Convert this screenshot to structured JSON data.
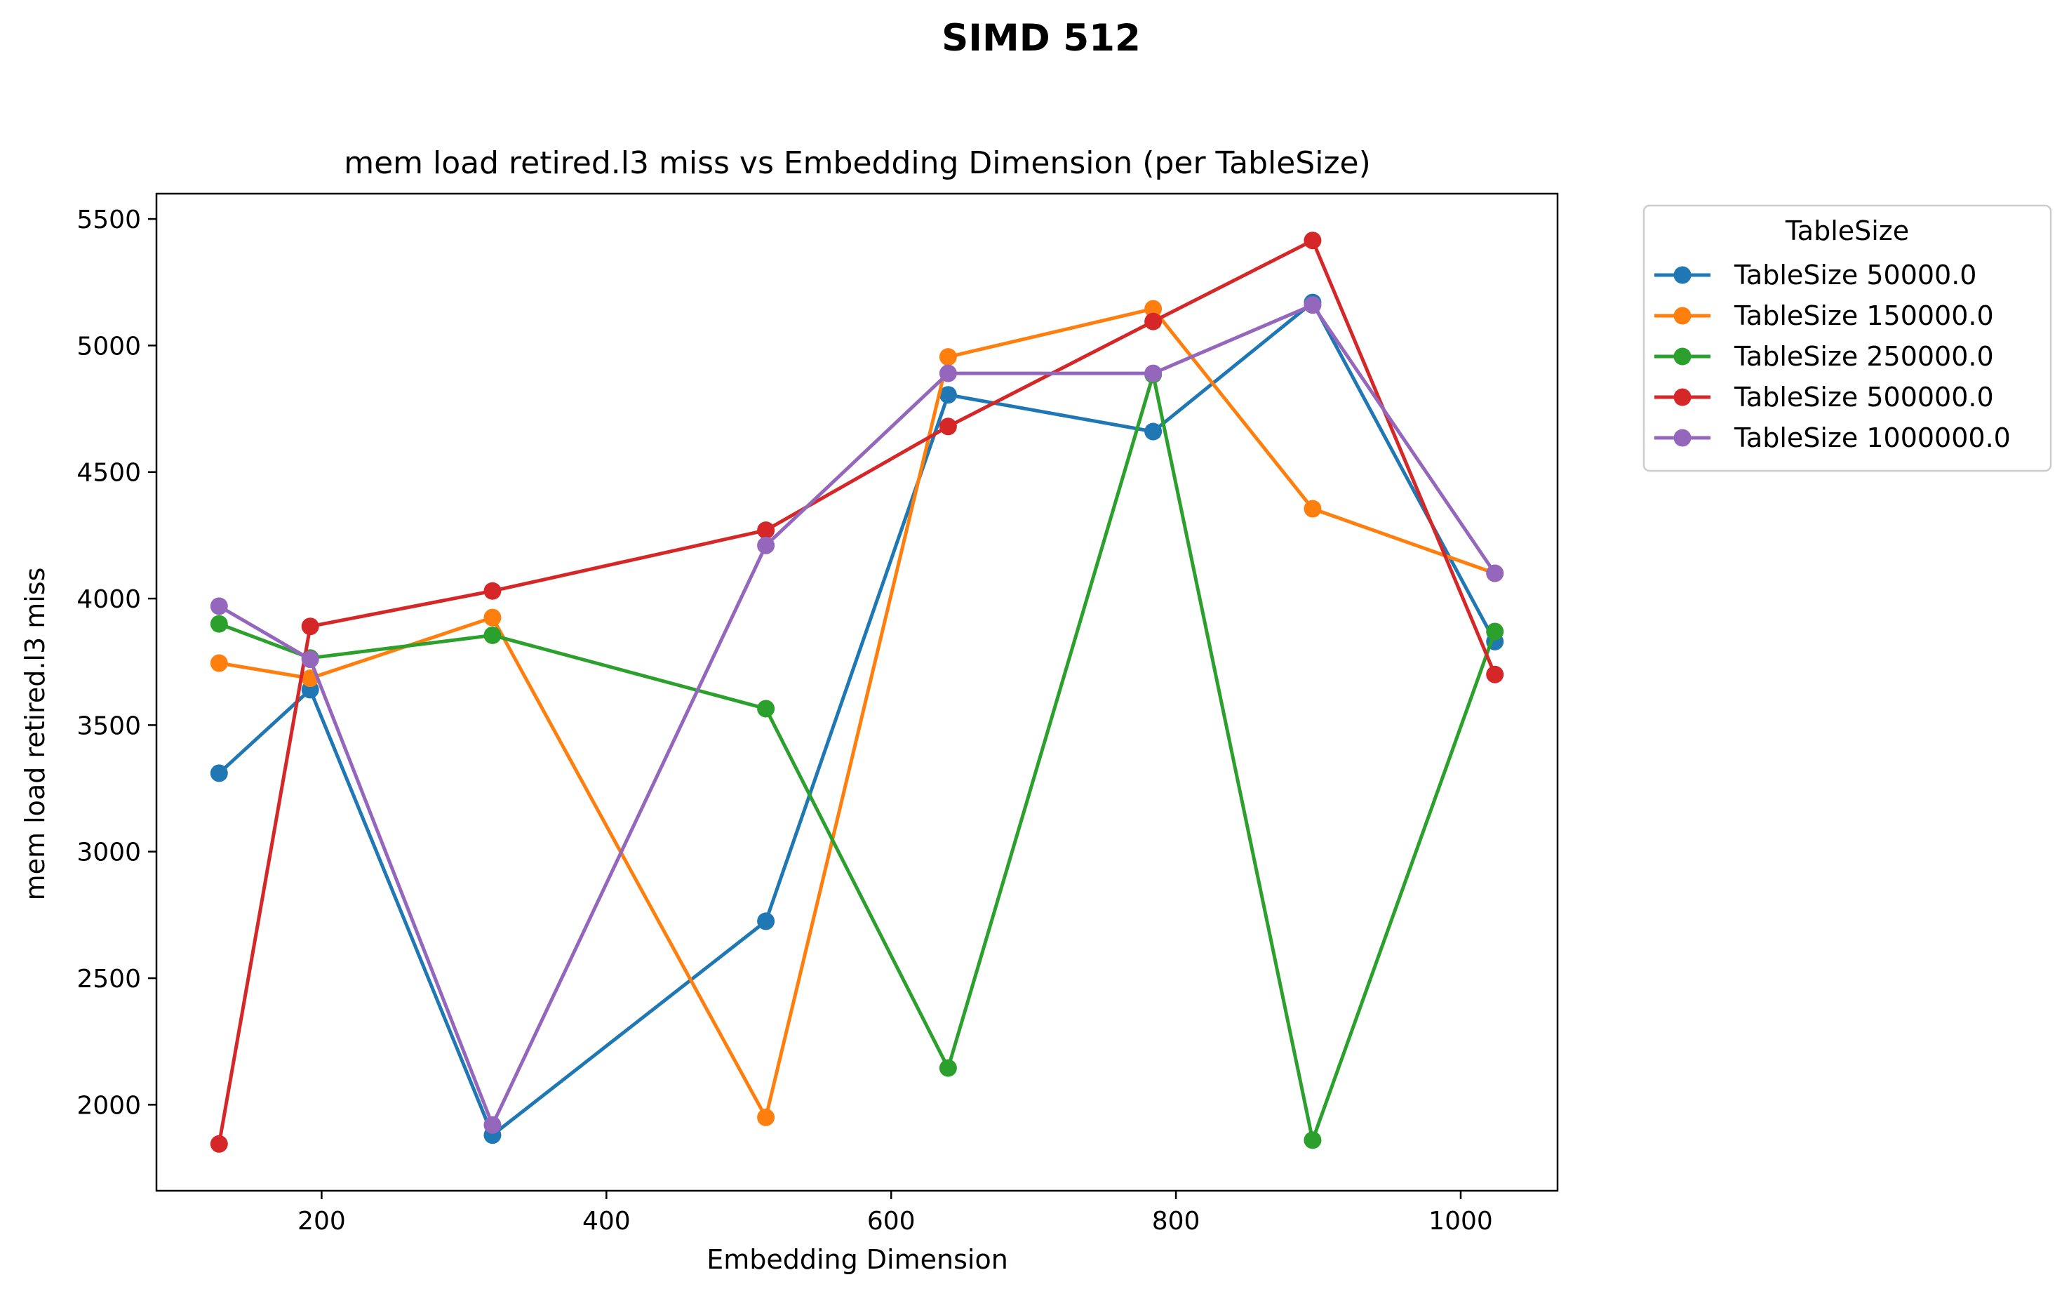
{
  "chart_data": {
    "type": "line",
    "suptitle": "SIMD 512",
    "title": "mem load retired.l3 miss vs Embedding Dimension (per TableSize)",
    "xlabel": "Embedding Dimension",
    "ylabel": "mem load retired.l3 miss",
    "xlim": [
      84,
      1068
    ],
    "ylim": [
      1660,
      5600
    ],
    "xticks": [
      200,
      400,
      600,
      800,
      1000
    ],
    "yticks": [
      2000,
      2500,
      3000,
      3500,
      4000,
      4500,
      5000,
      5500
    ],
    "grid": false,
    "legend": {
      "title": "TableSize",
      "placement": "outside-right-top"
    },
    "x": [
      128,
      192,
      320,
      512,
      640,
      784,
      896,
      1024
    ],
    "series": [
      {
        "name": "TableSize 50000.0",
        "color": "#1f77b4",
        "values": [
          3310,
          3640,
          1880,
          2725,
          4805,
          4660,
          5170,
          3830
        ]
      },
      {
        "name": "TableSize 150000.0",
        "color": "#ff7f0e",
        "values": [
          3745,
          3685,
          3925,
          1950,
          4955,
          5145,
          4355,
          4100
        ]
      },
      {
        "name": "TableSize 250000.0",
        "color": "#2ca02c",
        "values": [
          3900,
          3765,
          3855,
          3565,
          2145,
          4885,
          1860,
          3870
        ]
      },
      {
        "name": "TableSize 500000.0",
        "color": "#d62728",
        "values": [
          1845,
          3890,
          4030,
          4270,
          4680,
          5095,
          5415,
          3700
        ]
      },
      {
        "name": "TableSize 1000000.0",
        "color": "#9467bd",
        "values": [
          3970,
          3760,
          1920,
          4210,
          4890,
          4890,
          5160,
          4100
        ]
      }
    ]
  }
}
